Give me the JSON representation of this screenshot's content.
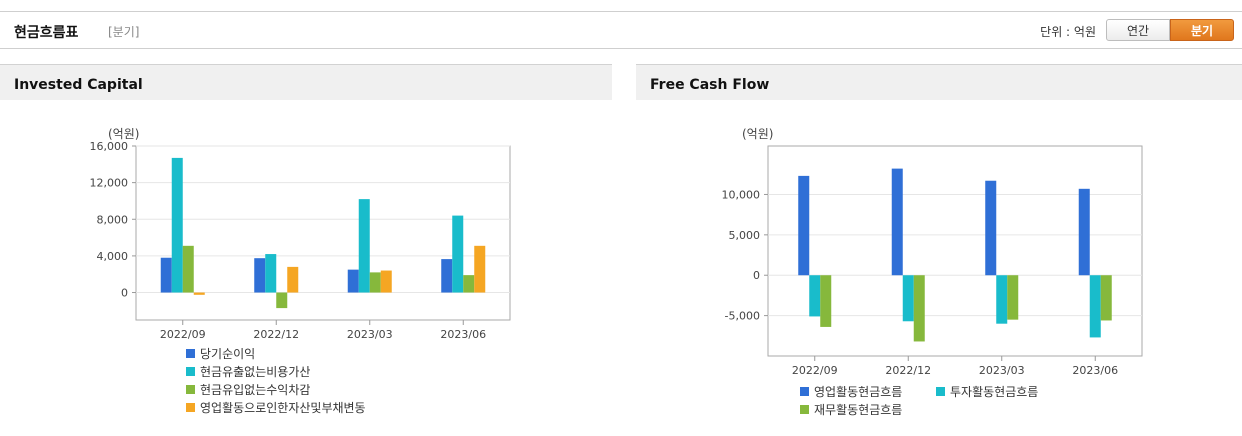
{
  "header": {
    "title": "현금흐름표",
    "period_tag": "[분기]",
    "unit": "단위 : 억원",
    "btn_annual": "연간",
    "btn_quarter": "분기"
  },
  "colors": {
    "blue": "#2f6fd6",
    "cyan": "#19bccb",
    "green": "#86b83c",
    "orange": "#f5a623",
    "active_button": "#e8862a"
  },
  "chart_data": [
    {
      "type": "bar",
      "title": "Invested Capital",
      "unit_label": "(억원)",
      "categories": [
        "2022/09",
        "2022/12",
        "2023/03",
        "2023/06"
      ],
      "series": [
        {
          "name": "당기순이익",
          "values": [
            3800,
            3750,
            2500,
            3650
          ]
        },
        {
          "name": "현금유출없는비용가산",
          "values": [
            14700,
            4200,
            10200,
            8400
          ]
        },
        {
          "name": "현금유입없는수익차감",
          "values": [
            5100,
            -1700,
            2200,
            1900
          ]
        },
        {
          "name": "영업활동으로인한자산및부채변동",
          "values": [
            -250,
            2800,
            2400,
            5100
          ]
        }
      ],
      "ylim": [
        -3000,
        16000
      ],
      "yticks": [
        0,
        4000,
        8000,
        12000,
        16000
      ],
      "ytick_labels": [
        "0",
        "4,000",
        "8,000",
        "12,000",
        "16,000"
      ],
      "grid": true,
      "legend_position": "bottom"
    },
    {
      "type": "bar",
      "title": "Free Cash Flow",
      "unit_label": "(억원)",
      "categories": [
        "2022/09",
        "2022/12",
        "2023/03",
        "2023/06"
      ],
      "series": [
        {
          "name": "영업활동현금흐름",
          "values": [
            12300,
            13200,
            11700,
            10700
          ]
        },
        {
          "name": "투자활동현금흐름",
          "values": [
            -5100,
            -5700,
            -6000,
            -7700
          ]
        },
        {
          "name": "재무활동현금흐름",
          "values": [
            -6400,
            -8200,
            -5500,
            -5600
          ]
        }
      ],
      "ylim": [
        -10000,
        16000
      ],
      "yticks": [
        -5000,
        0,
        5000,
        10000
      ],
      "ytick_labels": [
        "-5,000",
        "0",
        "5,000",
        "10,000"
      ],
      "grid": true,
      "legend_position": "bottom"
    }
  ]
}
